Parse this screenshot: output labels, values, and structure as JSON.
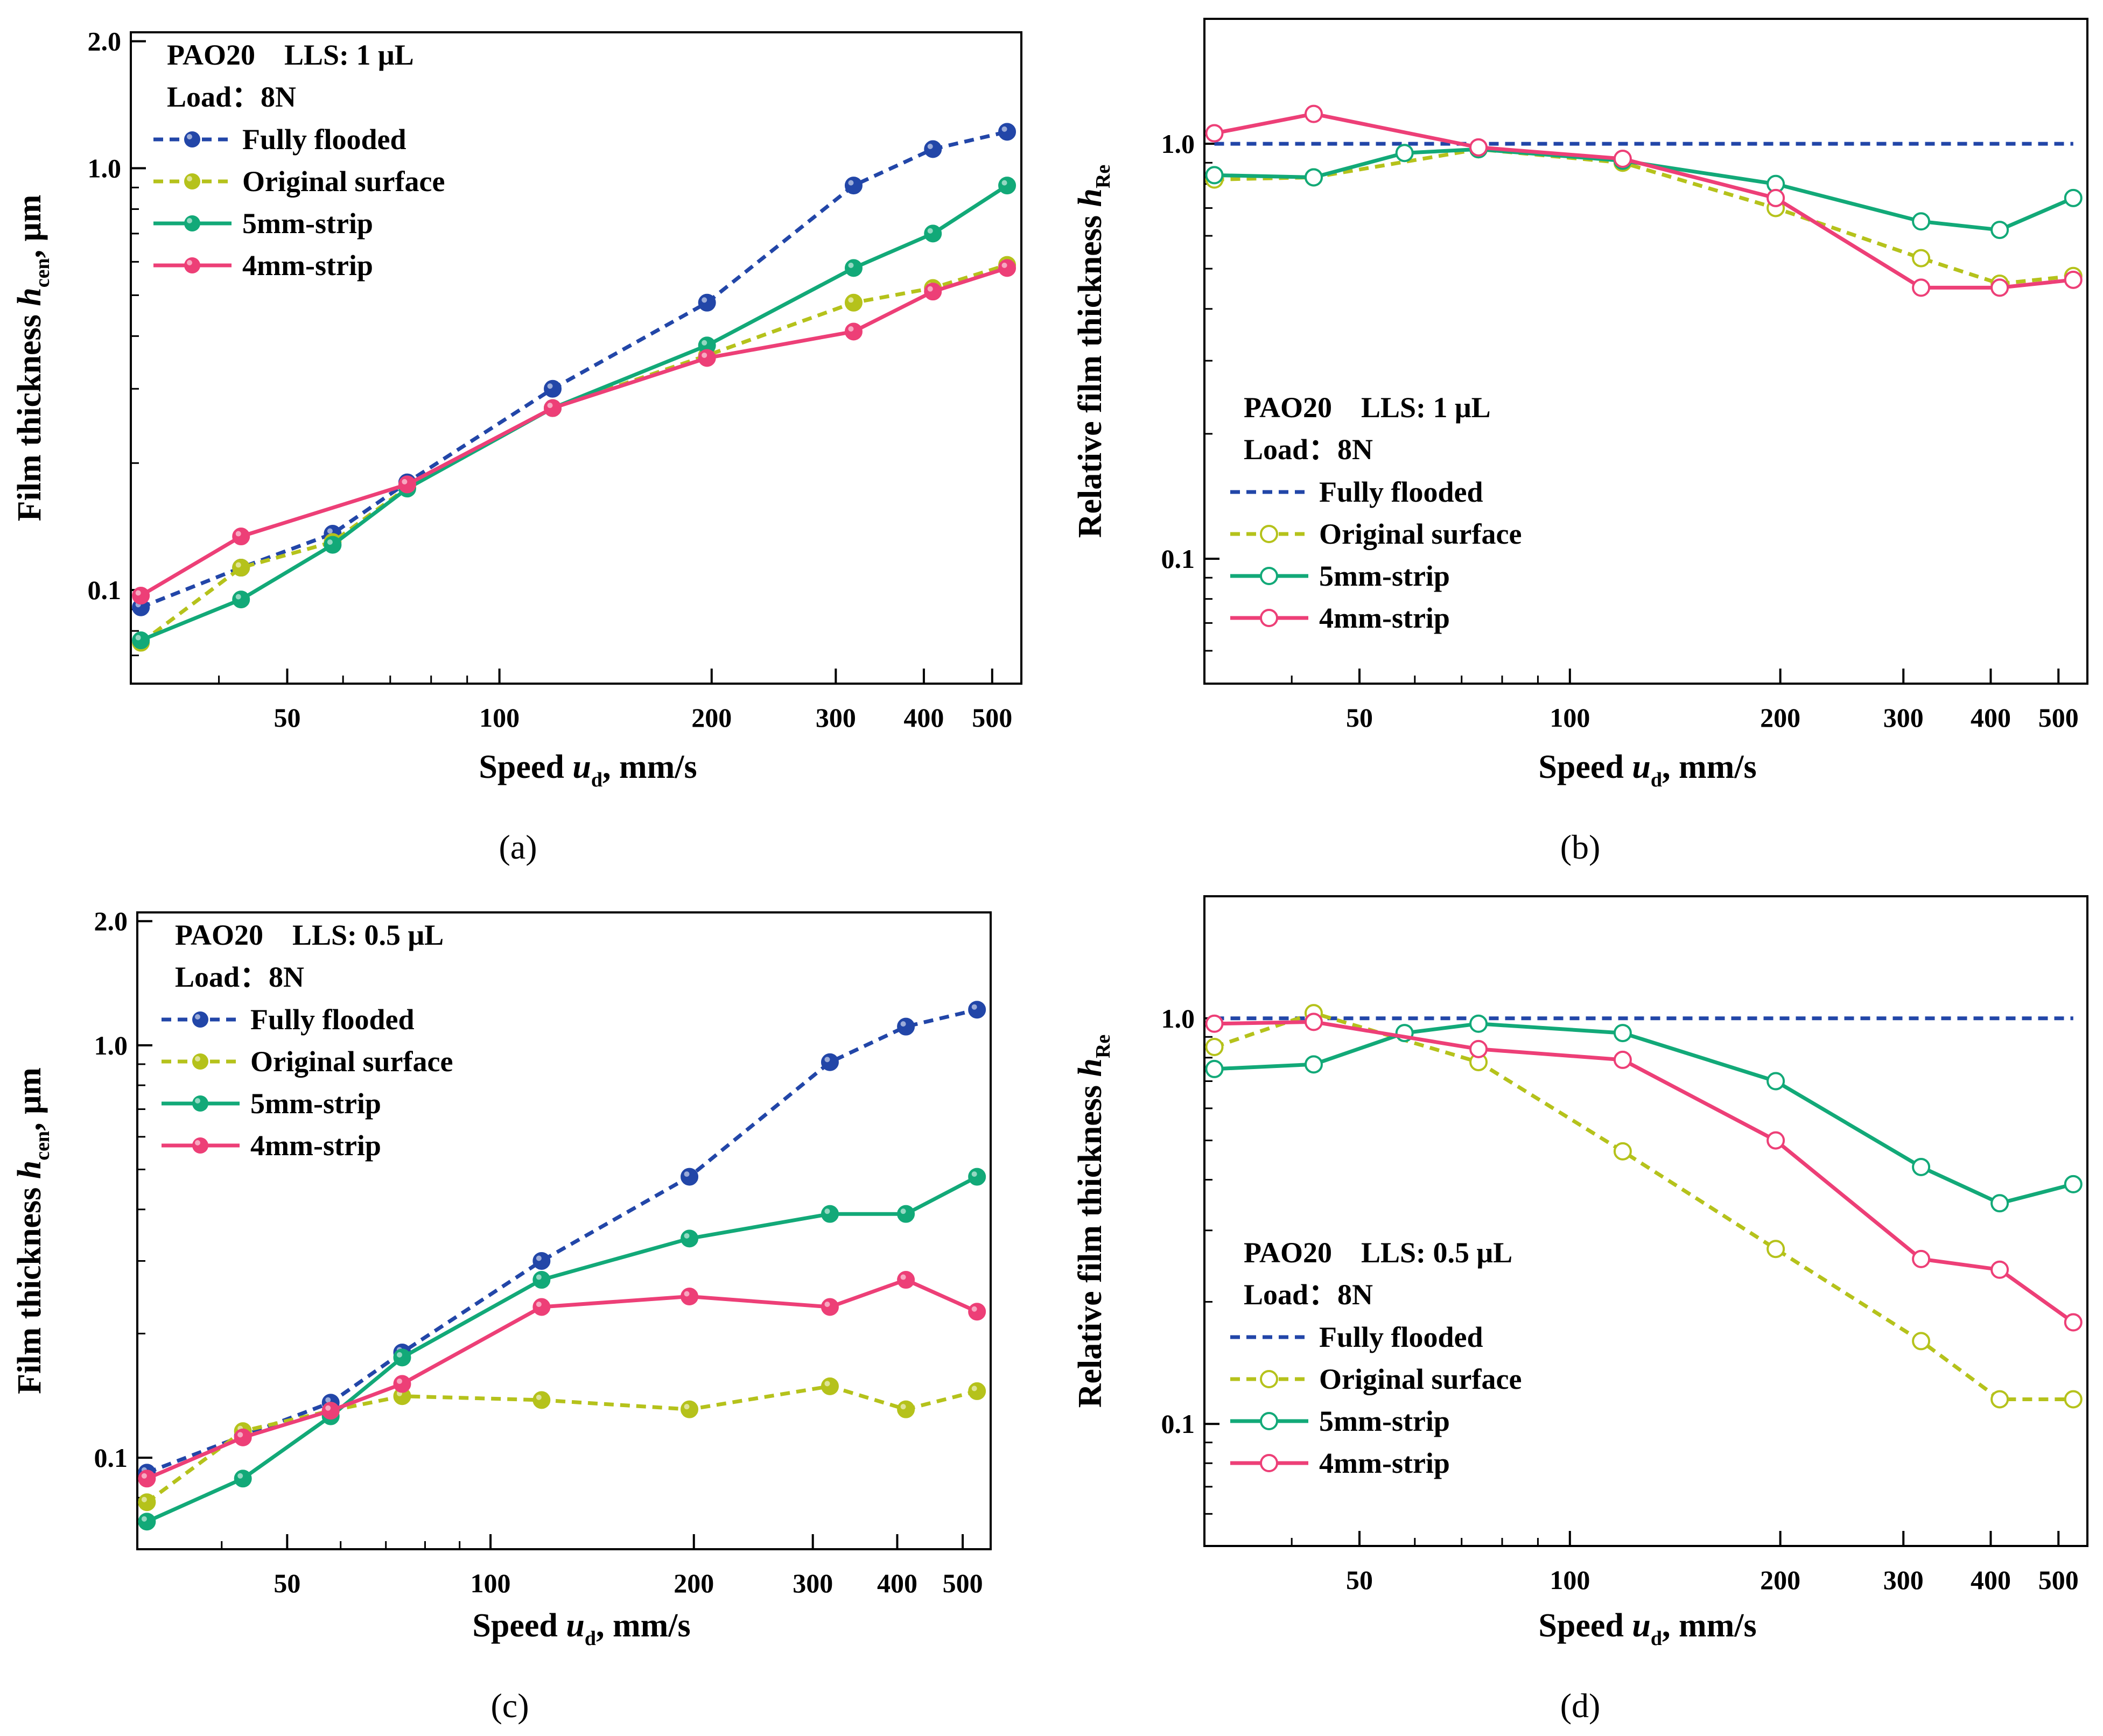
{
  "figure": {
    "panel_labels": [
      "(a)",
      "(b)",
      "(c)",
      "(d)"
    ]
  },
  "chart_data": [
    {
      "panel": "(a)",
      "type": "line",
      "scale": "log-log",
      "xlabel": {
        "pre": "Speed ",
        "var": "u",
        "sub": "d",
        "post": ", mm/s"
      },
      "ylabel": {
        "pre": "Film thickness ",
        "var": "h",
        "sub": "cen",
        "post": ", μm"
      },
      "xlim": [
        30,
        550
      ],
      "ylim": [
        0.06,
        2.1
      ],
      "xticks": [
        {
          "v": 50,
          "label": "50"
        },
        {
          "v": 100,
          "label": "100"
        },
        {
          "v": 200,
          "label": "200"
        },
        {
          "v": 300,
          "label": "300"
        },
        {
          "v": 400,
          "label": "400"
        },
        {
          "v": 500,
          "label": "500"
        }
      ],
      "xminor": [
        40,
        60,
        70,
        80,
        90
      ],
      "yticks": [
        {
          "v": 0.1,
          "label": "0.1"
        },
        {
          "v": 1.0,
          "label": "1.0"
        },
        {
          "v": 2.0,
          "label": "2.0"
        }
      ],
      "yminor": [
        0.07,
        0.08,
        0.09,
        0.2,
        0.3,
        0.4,
        0.5,
        0.6,
        0.7,
        0.8,
        0.9
      ],
      "legend": {
        "line1": "PAO20    LLS: 1 μL",
        "line2": "Load：8N",
        "placement": "top-left"
      },
      "series": [
        {
          "name": "Fully flooded",
          "color": "#2246a8",
          "dashed": true,
          "marker": "filled",
          "x": [
            31,
            43,
            58,
            74,
            119,
            197,
            318,
            412,
            525
          ],
          "y": [
            0.091,
            0.113,
            0.136,
            0.18,
            0.3,
            0.48,
            0.91,
            1.11,
            1.22
          ]
        },
        {
          "name": "Original surface",
          "color": "#b5c21b",
          "dashed": true,
          "marker": "filled",
          "x": [
            31,
            43,
            58,
            74,
            119,
            197,
            318,
            412,
            525
          ],
          "y": [
            0.075,
            0.113,
            0.13,
            0.175,
            0.27,
            0.36,
            0.48,
            0.52,
            0.59
          ]
        },
        {
          "name": "5mm-strip",
          "color": "#12a978",
          "dashed": false,
          "marker": "filled",
          "x": [
            31,
            43,
            58,
            74,
            119,
            197,
            318,
            412,
            525
          ],
          "y": [
            0.076,
            0.095,
            0.128,
            0.174,
            0.27,
            0.38,
            0.58,
            0.7,
            0.91
          ]
        },
        {
          "name": "4mm-strip",
          "color": "#ed3f77",
          "dashed": false,
          "marker": "filled",
          "x": [
            31,
            43,
            74,
            119,
            197,
            318,
            412,
            525
          ],
          "y": [
            0.097,
            0.134,
            0.178,
            0.27,
            0.355,
            0.41,
            0.51,
            0.58
          ]
        }
      ]
    },
    {
      "panel": "(b)",
      "type": "line",
      "scale": "log-log",
      "xlabel": {
        "pre": "Speed ",
        "var": "u",
        "sub": "d",
        "post": ", mm/s"
      },
      "ylabel": {
        "pre": "Relative film thickness ",
        "var": "h",
        "sub": "Re",
        "post": ""
      },
      "xlim": [
        30,
        550
      ],
      "ylim": [
        0.05,
        2.0
      ],
      "xticks": [
        {
          "v": 50,
          "label": "50"
        },
        {
          "v": 100,
          "label": "100"
        },
        {
          "v": 200,
          "label": "200"
        },
        {
          "v": 300,
          "label": "300"
        },
        {
          "v": 400,
          "label": "400"
        },
        {
          "v": 500,
          "label": "500"
        }
      ],
      "xminor": [
        40,
        60,
        70,
        80,
        90
      ],
      "yticks": [
        {
          "v": 0.1,
          "label": "0.1"
        },
        {
          "v": 1.0,
          "label": "1.0"
        }
      ],
      "yminor": [
        0.06,
        0.07,
        0.08,
        0.09,
        0.2,
        0.3,
        0.4,
        0.5,
        0.6,
        0.7,
        0.8,
        0.9
      ],
      "legend": {
        "line1": "PAO20    LLS: 1 μL",
        "line2": "Load：8N",
        "placement": "center-left"
      },
      "series": [
        {
          "name": "Fully flooded",
          "color": "#2246a8",
          "dashed": true,
          "marker": "none",
          "x": [
            31,
            525
          ],
          "y": [
            1.0,
            1.0
          ]
        },
        {
          "name": "Original surface",
          "color": "#b5c21b",
          "dashed": true,
          "marker": "open",
          "x": [
            31,
            43,
            74,
            119,
            197,
            318,
            412,
            525
          ],
          "y": [
            0.82,
            0.83,
            0.97,
            0.9,
            0.7,
            0.53,
            0.46,
            0.48
          ]
        },
        {
          "name": "5mm-strip",
          "color": "#12a978",
          "dashed": false,
          "marker": "open",
          "x": [
            31,
            43,
            58,
            74,
            119,
            197,
            318,
            412,
            525
          ],
          "y": [
            0.84,
            0.83,
            0.95,
            0.97,
            0.91,
            0.8,
            0.65,
            0.62,
            0.74
          ]
        },
        {
          "name": "4mm-strip",
          "color": "#ed3f77",
          "dashed": false,
          "marker": "open",
          "x": [
            31,
            43,
            74,
            119,
            197,
            318,
            412,
            525
          ],
          "y": [
            1.06,
            1.18,
            0.98,
            0.92,
            0.74,
            0.45,
            0.45,
            0.47
          ]
        }
      ]
    },
    {
      "panel": "(c)",
      "type": "line",
      "scale": "log-log",
      "xlabel": {
        "pre": "Speed ",
        "var": "u",
        "sub": "d",
        "post": ", mm/s"
      },
      "ylabel": {
        "pre": "Film thickness ",
        "var": "h",
        "sub": "cen",
        "post": ", μm"
      },
      "xlim": [
        30,
        550
      ],
      "ylim": [
        0.06,
        2.1
      ],
      "xticks": [
        {
          "v": 50,
          "label": "50"
        },
        {
          "v": 100,
          "label": "100"
        },
        {
          "v": 200,
          "label": "200"
        },
        {
          "v": 300,
          "label": "300"
        },
        {
          "v": 400,
          "label": "400"
        },
        {
          "v": 500,
          "label": "500"
        }
      ],
      "xminor": [
        40,
        60,
        70,
        80,
        90
      ],
      "yticks": [
        {
          "v": 0.1,
          "label": "0.1"
        },
        {
          "v": 1.0,
          "label": "1.0"
        },
        {
          "v": 2.0,
          "label": "2.0"
        }
      ],
      "yminor": [
        0.07,
        0.08,
        0.09,
        0.2,
        0.3,
        0.4,
        0.5,
        0.6,
        0.7,
        0.8,
        0.9
      ],
      "legend": {
        "line1": "PAO20    LLS: 0.5 μL",
        "line2": "Load：8N",
        "placement": "top-left"
      },
      "series": [
        {
          "name": "Fully flooded",
          "color": "#2246a8",
          "dashed": true,
          "marker": "filled",
          "x": [
            31,
            43,
            58,
            74,
            119,
            197,
            318,
            412,
            525
          ],
          "y": [
            0.092,
            0.113,
            0.136,
            0.18,
            0.3,
            0.48,
            0.91,
            1.11,
            1.22
          ]
        },
        {
          "name": "Original surface",
          "color": "#b5c21b",
          "dashed": true,
          "marker": "filled",
          "x": [
            31,
            43,
            58,
            74,
            119,
            197,
            318,
            412,
            525
          ],
          "y": [
            0.078,
            0.116,
            0.13,
            0.141,
            0.138,
            0.131,
            0.149,
            0.131,
            0.145
          ]
        },
        {
          "name": "5mm-strip",
          "color": "#12a978",
          "dashed": false,
          "marker": "filled",
          "x": [
            31,
            43,
            58,
            74,
            119,
            197,
            318,
            412,
            525
          ],
          "y": [
            0.07,
            0.089,
            0.126,
            0.175,
            0.27,
            0.34,
            0.39,
            0.39,
            0.48
          ]
        },
        {
          "name": "4mm-strip",
          "color": "#ed3f77",
          "dashed": false,
          "marker": "filled",
          "x": [
            31,
            43,
            58,
            74,
            119,
            197,
            318,
            412,
            525
          ],
          "y": [
            0.089,
            0.112,
            0.13,
            0.151,
            0.232,
            0.246,
            0.232,
            0.27,
            0.226
          ]
        }
      ]
    },
    {
      "panel": "(d)",
      "type": "line",
      "scale": "log-log",
      "xlabel": {
        "pre": "Speed ",
        "var": "u",
        "sub": "d",
        "post": ", mm/s"
      },
      "ylabel": {
        "pre": "Relative film thickness ",
        "var": "h",
        "sub": "Re",
        "post": ""
      },
      "xlim": [
        30,
        550
      ],
      "ylim": [
        0.05,
        2.0
      ],
      "xticks": [
        {
          "v": 50,
          "label": "50"
        },
        {
          "v": 100,
          "label": "100"
        },
        {
          "v": 200,
          "label": "200"
        },
        {
          "v": 300,
          "label": "300"
        },
        {
          "v": 400,
          "label": "400"
        },
        {
          "v": 500,
          "label": "500"
        }
      ],
      "xminor": [
        40,
        60,
        70,
        80,
        90
      ],
      "yticks": [
        {
          "v": 0.1,
          "label": "0.1"
        },
        {
          "v": 1.0,
          "label": "1.0"
        }
      ],
      "yminor": [
        0.06,
        0.07,
        0.08,
        0.09,
        0.2,
        0.3,
        0.4,
        0.5,
        0.6,
        0.7,
        0.8,
        0.9
      ],
      "legend": {
        "line1": "PAO20    LLS: 0.5 μL",
        "line2": "Load：8N",
        "placement": "center-left"
      },
      "series": [
        {
          "name": "Fully flooded",
          "color": "#2246a8",
          "dashed": true,
          "marker": "none",
          "x": [
            31,
            525
          ],
          "y": [
            1.0,
            1.0
          ]
        },
        {
          "name": "Original surface",
          "color": "#b5c21b",
          "dashed": true,
          "marker": "open",
          "x": [
            31,
            43,
            74,
            119,
            197,
            318,
            412,
            525
          ],
          "y": [
            0.85,
            1.03,
            0.78,
            0.47,
            0.27,
            0.16,
            0.115,
            0.115
          ]
        },
        {
          "name": "5mm-strip",
          "color": "#12a978",
          "dashed": false,
          "marker": "open",
          "x": [
            31,
            43,
            58,
            74,
            119,
            197,
            318,
            412,
            525
          ],
          "y": [
            0.75,
            0.77,
            0.92,
            0.97,
            0.92,
            0.7,
            0.43,
            0.35,
            0.39
          ]
        },
        {
          "name": "4mm-strip",
          "color": "#ed3f77",
          "dashed": false,
          "marker": "open",
          "x": [
            31,
            43,
            74,
            119,
            197,
            318,
            412,
            525
          ],
          "y": [
            0.97,
            0.98,
            0.84,
            0.79,
            0.5,
            0.255,
            0.24,
            0.178
          ]
        }
      ]
    }
  ]
}
